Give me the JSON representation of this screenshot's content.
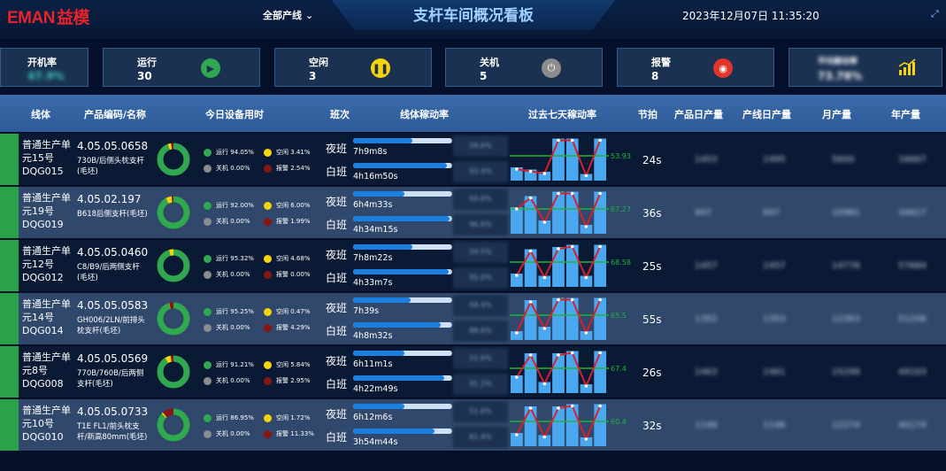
{
  "header": {
    "logo_text": "EMAN",
    "logo_cn": "益模",
    "line_select": "全部产线",
    "title": "支杆车间概况看板",
    "datetime": "2023年12月07日 11:35:20"
  },
  "cards": [
    {
      "label": "开机率",
      "value": "47.9%"
    },
    {
      "label": "运行",
      "value": "30",
      "icon": "play-icon",
      "color": "#2fa84f"
    },
    {
      "label": "空闲",
      "value": "3",
      "icon": "pause-icon",
      "color": "#f5d50a"
    },
    {
      "label": "关机",
      "value": "5",
      "icon": "power-icon",
      "color": "#8c8c8c"
    },
    {
      "label": "报警",
      "value": "8",
      "icon": "alarm-icon",
      "color": "#e0352b"
    },
    {
      "label": "平均稼动率",
      "value": "73.78%",
      "icon": "chart-up-icon",
      "color": "#f5d50a"
    }
  ],
  "columns": [
    "线体",
    "产品编码/名称",
    "今日设备用时",
    "班次",
    "线体稼动率",
    "过去七天稼动率",
    "节拍",
    "产品日产量",
    "产线日产量",
    "月产量",
    "年产量"
  ],
  "labels": {
    "running": "运行",
    "idle": "空闲",
    "off": "关机",
    "alarm": "报警",
    "night": "夜班",
    "day": "白班"
  },
  "rows": [
    {
      "unit": "普通生产单元15号",
      "dqg": "DQG015",
      "code": "4.05.05.0658",
      "name": "730B/后侧头枕支杆(毛坯)",
      "running": "94.05%",
      "idle": "3.41%",
      "off": "0.00%",
      "alarm": "2.54%",
      "night_time": "7h9m8s",
      "day_time": "4h16m50s",
      "night_fill": 0.6,
      "day_fill": 0.95,
      "night_rate": "59.6%",
      "day_rate": "93.4%",
      "spark_label": "53.93",
      "spark_values": [
        30,
        25,
        20,
        95,
        95,
        15,
        95
      ],
      "beat": "24s",
      "prod_daily": "1453",
      "line_daily": "1495",
      "monthly": "5600",
      "yearly": "16667"
    },
    {
      "unit": "普通生产单元19号",
      "dqg": "DQG019",
      "code": "4.05.02.197",
      "name": "B618后侧支杆(毛坯)",
      "running": "92.00%",
      "idle": "6.00%",
      "off": "0.00%",
      "alarm": "1.99%",
      "night_time": "6h4m33s",
      "day_time": "4h34m15s",
      "night_fill": 0.52,
      "day_fill": 0.97,
      "night_rate": "50.6%",
      "day_rate": "96.6%",
      "spark_label": "67.27",
      "spark_values": [
        60,
        85,
        30,
        95,
        95,
        20,
        95
      ],
      "beat": "36s",
      "prod_daily": "947",
      "line_daily": "947",
      "monthly": "10981",
      "yearly": "34617"
    },
    {
      "unit": "普通生产单元12号",
      "dqg": "DQG012",
      "code": "4.05.05.0460",
      "name": "C8/B9/后两侧支杆(毛坯)",
      "running": "95.32%",
      "idle": "4.68%",
      "off": "0.00%",
      "alarm": "0.00%",
      "night_time": "7h8m22s",
      "day_time": "4h33m7s",
      "night_fill": 0.6,
      "day_fill": 0.96,
      "night_rate": "59.5%",
      "day_rate": "95.0%",
      "spark_label": "68.58",
      "spark_values": [
        30,
        85,
        25,
        90,
        95,
        25,
        95
      ],
      "beat": "25s",
      "prod_daily": "1457",
      "line_daily": "1457",
      "monthly": "14778",
      "yearly": "57684"
    },
    {
      "unit": "普通生产单元14号",
      "dqg": "DQG014",
      "code": "4.05.05.0583",
      "name": "GH006/2LN/前排头枕支杆(毛坯)",
      "running": "95.25%",
      "idle": "0.47%",
      "off": "0.00%",
      "alarm": "4.29%",
      "night_time": "7h39s",
      "day_time": "4h8m32s",
      "night_fill": 0.58,
      "day_fill": 0.88,
      "night_rate": "58.4%",
      "day_rate": "88.6%",
      "spark_label": "65.5",
      "spark_values": [
        20,
        90,
        30,
        95,
        95,
        20,
        95
      ],
      "beat": "55s",
      "prod_daily": "1352",
      "line_daily": "1353",
      "monthly": "12363",
      "yearly": "51206"
    },
    {
      "unit": "普通生产单元8号",
      "dqg": "DQG008",
      "code": "4.05.05.0569",
      "name": "770B/760B/后两侧支杆(毛坯)",
      "running": "91.21%",
      "idle": "5.84%",
      "off": "0.00%",
      "alarm": "2.95%",
      "night_time": "6h11m1s",
      "day_time": "4h22m49s",
      "night_fill": 0.52,
      "day_fill": 0.92,
      "night_rate": "51.6%",
      "day_rate": "91.2%",
      "spark_label": "67.4",
      "spark_values": [
        40,
        90,
        25,
        90,
        95,
        20,
        95
      ],
      "beat": "26s",
      "prod_daily": "1463",
      "line_daily": "1461",
      "monthly": "15299",
      "yearly": "49103"
    },
    {
      "unit": "普通生产单元10号",
      "dqg": "DQG010",
      "code": "4.05.05.0733",
      "name": "T1E FL1/前头枕支杆/新高80mm(毛坯)",
      "running": "86.95%",
      "idle": "1.72%",
      "off": "0.00%",
      "alarm": "11.33%",
      "night_time": "6h12m6s",
      "day_time": "3h54m44s",
      "night_fill": 0.52,
      "day_fill": 0.82,
      "night_rate": "51.6%",
      "day_rate": "81.4%",
      "spark_label": "60.4",
      "spark_values": [
        30,
        90,
        25,
        90,
        95,
        20,
        95
      ],
      "beat": "32s",
      "prod_daily": "1146",
      "line_daily": "1146",
      "monthly": "12274",
      "yearly": "40174"
    }
  ]
}
